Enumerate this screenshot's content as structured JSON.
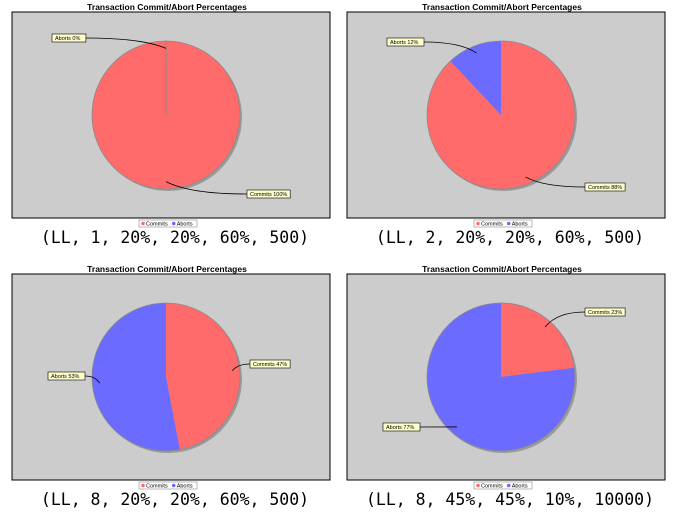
{
  "chart_data": [
    {
      "type": "pie",
      "title": "Transaction Commit/Abort Percentages",
      "slices": [
        {
          "name": "Commits",
          "value": 100,
          "label": "Commits 100%",
          "color": "#ff6b6b"
        },
        {
          "name": "Aborts",
          "value": 0,
          "label": "Aborts 0%",
          "color": "#6b6bff"
        }
      ],
      "legend": {
        "placement": "bottom",
        "entries": [
          "Commits",
          "Aborts"
        ]
      },
      "caption": "(LL, 1, 20%, 20%, 60%, 500)"
    },
    {
      "type": "pie",
      "title": "Transaction Commit/Abort Percentages",
      "slices": [
        {
          "name": "Commits",
          "value": 88,
          "label": "Commits 88%",
          "color": "#ff6b6b"
        },
        {
          "name": "Aborts",
          "value": 12,
          "label": "Aborts 12%",
          "color": "#6b6bff"
        }
      ],
      "legend": {
        "placement": "bottom",
        "entries": [
          "Commits",
          "Aborts"
        ]
      },
      "caption": "(LL, 2, 20%, 20%, 60%, 500)"
    },
    {
      "type": "pie",
      "title": "Transaction Commit/Abort Percentages",
      "slices": [
        {
          "name": "Commits",
          "value": 47,
          "label": "Commits 47%",
          "color": "#ff6b6b"
        },
        {
          "name": "Aborts",
          "value": 53,
          "label": "Aborts 53%",
          "color": "#6b6bff"
        }
      ],
      "legend": {
        "placement": "bottom",
        "entries": [
          "Commits",
          "Aborts"
        ]
      },
      "caption": "(LL, 8, 20%, 20%, 60%, 500)"
    },
    {
      "type": "pie",
      "title": "Transaction Commit/Abort Percentages",
      "slices": [
        {
          "name": "Commits",
          "value": 23,
          "label": "Commits 23%",
          "color": "#ff6b6b"
        },
        {
          "name": "Aborts",
          "value": 77,
          "label": "Aborts 77%",
          "color": "#6b6bff"
        }
      ],
      "legend": {
        "placement": "bottom",
        "entries": [
          "Commits",
          "Aborts"
        ]
      },
      "caption": "(LL, 8, 45%, 45%, 10%, 10000)"
    }
  ],
  "style": {
    "plot_background": "#cccccc",
    "callout_background": "#ffffcc",
    "border": "#000000"
  }
}
